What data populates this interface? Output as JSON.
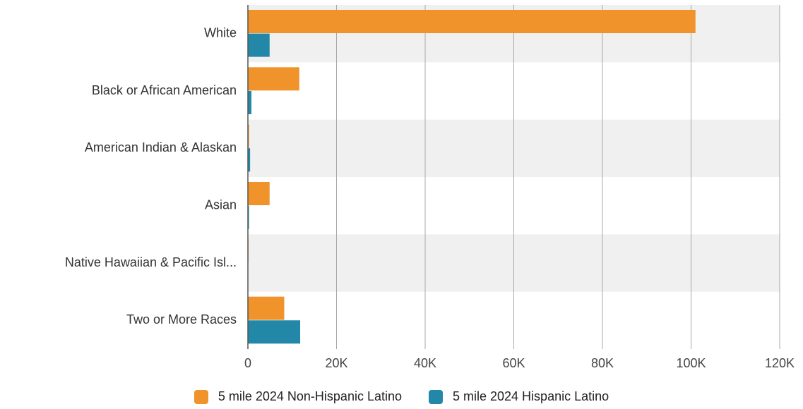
{
  "chart_data": {
    "type": "bar",
    "orientation": "horizontal",
    "categories": [
      "White",
      "Black or African American",
      "American Indian & Alaskan",
      "Asian",
      "Native Hawaiian & Pacific Isl...",
      "Two or More Races"
    ],
    "series": [
      {
        "name": "5 mile 2024 Non-Hispanic Latino",
        "color": "#F0932A",
        "values": [
          101000,
          11600,
          250,
          4900,
          150,
          8200
        ]
      },
      {
        "name": "5 mile 2024 Hispanic Latino",
        "color": "#2388A8",
        "values": [
          4900,
          800,
          500,
          250,
          0,
          11800
        ]
      }
    ],
    "xlim": [
      0,
      120000
    ],
    "x_ticks": [
      0,
      20000,
      40000,
      60000,
      80000,
      100000,
      120000
    ],
    "x_tick_labels": [
      "0",
      "20K",
      "40K",
      "60K",
      "80K",
      "100K",
      "120K"
    ],
    "grid": true,
    "legend_position": "bottom"
  }
}
